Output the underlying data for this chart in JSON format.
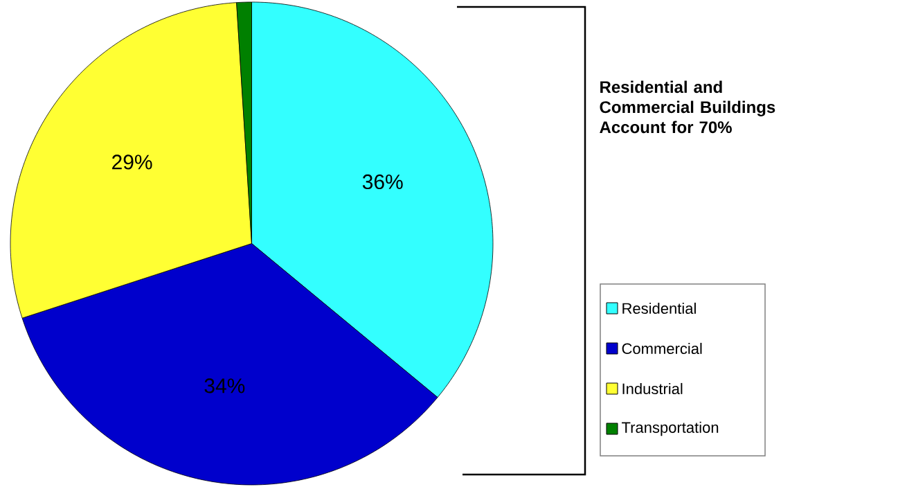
{
  "chart_data": {
    "type": "pie",
    "categories": [
      "Residential",
      "Commercial",
      "Industrial",
      "Transportation"
    ],
    "values": [
      36,
      34,
      29,
      1
    ],
    "colors": [
      "#33ffff",
      "#0000cc",
      "#ffff33",
      "#008000"
    ],
    "value_labels": [
      "36%",
      "34%",
      "29%",
      null
    ],
    "legend": "right",
    "annotations": [
      "Residential and Commercial Buildings Account for 70%"
    ]
  }
}
